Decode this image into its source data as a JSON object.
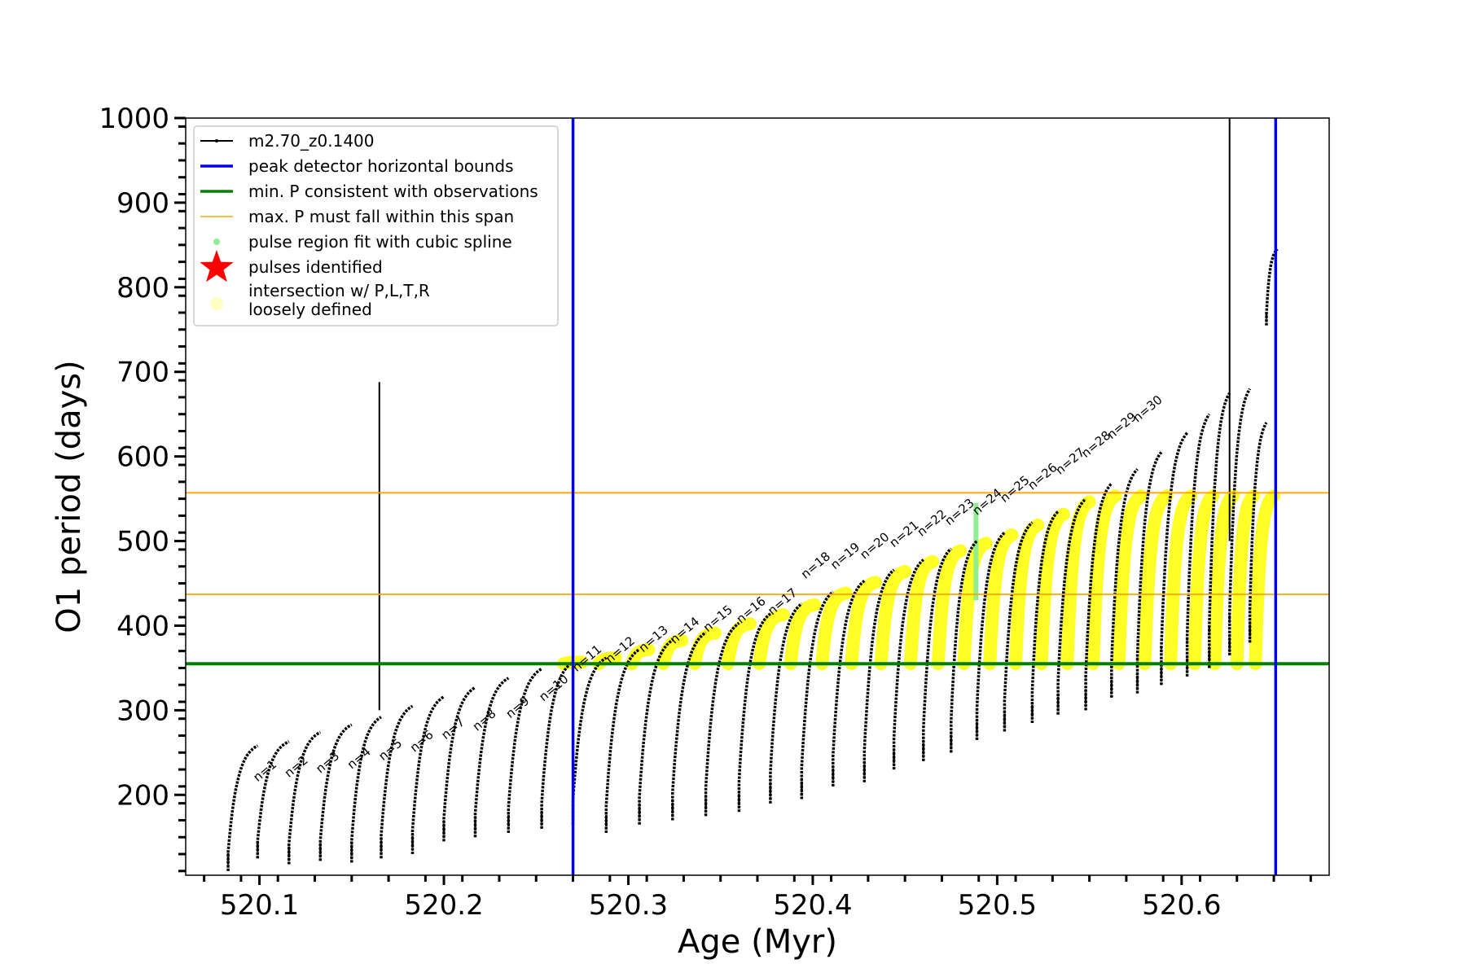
{
  "chart_data": {
    "type": "line",
    "xlabel": "Age (Myr)",
    "ylabel": "O1 period (days)",
    "xlim": [
      520.06,
      520.68
    ],
    "ylim": [
      105,
      1000
    ],
    "x_ticks": [
      "520.1",
      "520.2",
      "520.3",
      "520.4",
      "520.5",
      "520.6"
    ],
    "x_tick_values": [
      520.1,
      520.2,
      520.3,
      520.4,
      520.5,
      520.6
    ],
    "y_ticks": [
      "200",
      "300",
      "400",
      "500",
      "600",
      "700",
      "800",
      "900",
      "1000"
    ],
    "y_tick_values": [
      200,
      300,
      400,
      500,
      600,
      700,
      800,
      900,
      1000
    ],
    "legend": {
      "placement": "upper-left",
      "entries": [
        {
          "label": "m2.70_z0.1400",
          "style": "black-line-dots"
        },
        {
          "label": "peak detector horizontal bounds",
          "style": "blue-line"
        },
        {
          "label": "min. P consistent with observations",
          "style": "green-line"
        },
        {
          "label": "max. P must fall within this span",
          "style": "orange-line"
        },
        {
          "label": "pulse region fit with cubic spline",
          "style": "lightgreen-dot"
        },
        {
          "label": "pulses identified",
          "style": "red-star"
        },
        {
          "label": "intersection w/ P,L,T,R\nloosely defined",
          "style": "yellow-dot"
        }
      ]
    },
    "vertical_lines": [
      520.27,
      520.651
    ],
    "min_period_line": 355,
    "max_period_span": [
      437,
      557
    ],
    "series": [
      {
        "name": "m2.70_z0.1400",
        "color": "#000000",
        "pulses": [
          {
            "start": 520.083,
            "end": 520.099,
            "min": 110,
            "peak": 258
          },
          {
            "start": 520.099,
            "end": 520.116,
            "min": 125,
            "peak": 263
          },
          {
            "start": 520.116,
            "end": 520.133,
            "min": 118,
            "peak": 274
          },
          {
            "start": 520.133,
            "end": 520.15,
            "min": 122,
            "peak": 283
          },
          {
            "start": 520.15,
            "end": 520.166,
            "min": 120,
            "peak": 292
          },
          {
            "start": 520.166,
            "end": 520.183,
            "min": 125,
            "peak": 305
          },
          {
            "start": 520.183,
            "end": 520.2,
            "min": 130,
            "peak": 316
          },
          {
            "start": 520.2,
            "end": 520.217,
            "min": 145,
            "peak": 327
          },
          {
            "start": 520.217,
            "end": 520.235,
            "min": 150,
            "peak": 338
          },
          {
            "start": 520.235,
            "end": 520.253,
            "min": 155,
            "peak": 349
          },
          {
            "start": 520.253,
            "end": 520.27,
            "min": 160,
            "peak": 357
          },
          {
            "start": 520.27,
            "end": 520.288,
            "min": 165,
            "peak": 362
          },
          {
            "start": 520.288,
            "end": 520.306,
            "min": 155,
            "peak": 372
          },
          {
            "start": 520.306,
            "end": 520.324,
            "min": 165,
            "peak": 383
          },
          {
            "start": 520.324,
            "end": 520.342,
            "min": 170,
            "peak": 392
          },
          {
            "start": 520.342,
            "end": 520.36,
            "min": 175,
            "peak": 403
          },
          {
            "start": 520.36,
            "end": 520.377,
            "min": 180,
            "peak": 414
          },
          {
            "start": 520.377,
            "end": 520.394,
            "min": 190,
            "peak": 426
          },
          {
            "start": 520.394,
            "end": 520.411,
            "min": 195,
            "peak": 440
          },
          {
            "start": 520.411,
            "end": 520.428,
            "min": 210,
            "peak": 453
          },
          {
            "start": 520.428,
            "end": 520.444,
            "min": 215,
            "peak": 466
          },
          {
            "start": 520.444,
            "end": 520.46,
            "min": 230,
            "peak": 478
          },
          {
            "start": 520.46,
            "end": 520.475,
            "min": 240,
            "peak": 491
          },
          {
            "start": 520.475,
            "end": 520.489,
            "min": 250,
            "peak": 500
          },
          {
            "start": 520.489,
            "end": 520.504,
            "min": 265,
            "peak": 510
          },
          {
            "start": 520.504,
            "end": 520.519,
            "min": 275,
            "peak": 522
          },
          {
            "start": 520.519,
            "end": 520.533,
            "min": 285,
            "peak": 535
          },
          {
            "start": 520.533,
            "end": 520.548,
            "min": 295,
            "peak": 550
          },
          {
            "start": 520.548,
            "end": 520.562,
            "min": 300,
            "peak": 568
          },
          {
            "start": 520.562,
            "end": 520.576,
            "min": 315,
            "peak": 585
          },
          {
            "start": 520.576,
            "end": 520.589,
            "min": 320,
            "peak": 605
          },
          {
            "start": 520.589,
            "end": 520.603,
            "min": 330,
            "peak": 628
          },
          {
            "start": 520.603,
            "end": 520.615,
            "min": 340,
            "peak": 650
          },
          {
            "start": 520.615,
            "end": 520.626,
            "min": 350,
            "peak": 675
          },
          {
            "start": 520.626,
            "end": 520.637,
            "min": 365,
            "peak": 680
          },
          {
            "start": 520.637,
            "end": 520.646,
            "min": 380,
            "peak": 640
          },
          {
            "start": 520.646,
            "end": 520.652,
            "min": 755,
            "peak": 845
          }
        ],
        "spikes": [
          {
            "x": 520.165,
            "y_top": 688,
            "y_bottom": 300
          },
          {
            "x": 520.626,
            "y_top": 1000,
            "y_bottom": 500
          },
          {
            "x": 520.651,
            "y_top": 1000,
            "y_bottom": 620
          }
        ]
      }
    ],
    "pulse_labels": [
      "n=1",
      "n=2",
      "n=3",
      "n=4",
      "n=5",
      "n=6",
      "n=7",
      "n=8",
      "n=9",
      "n=10",
      "n=11",
      "n=12",
      "n=13",
      "n=14",
      "n=15",
      "n=16",
      "n=17",
      "n=18",
      "n=19",
      "n=20",
      "n=21",
      "n=22",
      "n=23",
      "n=24",
      "n=25",
      "n=26",
      "n=27",
      "n=28",
      "n=29",
      "n=30"
    ],
    "pulse_label_positions": [
      {
        "x": 520.099,
        "y": 215
      },
      {
        "x": 520.116,
        "y": 220
      },
      {
        "x": 520.133,
        "y": 225
      },
      {
        "x": 520.15,
        "y": 230
      },
      {
        "x": 520.167,
        "y": 240
      },
      {
        "x": 520.184,
        "y": 250
      },
      {
        "x": 520.201,
        "y": 265
      },
      {
        "x": 520.218,
        "y": 275
      },
      {
        "x": 520.236,
        "y": 290
      },
      {
        "x": 520.254,
        "y": 310
      },
      {
        "x": 520.272,
        "y": 345
      },
      {
        "x": 520.29,
        "y": 355
      },
      {
        "x": 520.308,
        "y": 368
      },
      {
        "x": 520.325,
        "y": 378
      },
      {
        "x": 520.343,
        "y": 392
      },
      {
        "x": 520.361,
        "y": 402
      },
      {
        "x": 520.378,
        "y": 412
      },
      {
        "x": 520.396,
        "y": 455
      },
      {
        "x": 520.412,
        "y": 466
      },
      {
        "x": 520.428,
        "y": 478
      },
      {
        "x": 520.444,
        "y": 492
      },
      {
        "x": 520.459,
        "y": 505
      },
      {
        "x": 520.474,
        "y": 518
      },
      {
        "x": 520.489,
        "y": 530
      },
      {
        "x": 520.504,
        "y": 545
      },
      {
        "x": 520.519,
        "y": 560
      },
      {
        "x": 520.534,
        "y": 578
      },
      {
        "x": 520.548,
        "y": 598
      },
      {
        "x": 520.562,
        "y": 620
      },
      {
        "x": 520.576,
        "y": 640
      }
    ],
    "yellow_regions": [
      [
        520.265,
        520.275
      ],
      [
        520.284,
        520.293
      ],
      [
        520.302,
        520.311
      ],
      [
        520.319,
        520.329
      ],
      [
        520.336,
        520.347
      ],
      [
        520.354,
        520.366
      ],
      [
        520.371,
        520.384
      ],
      [
        520.388,
        520.401
      ],
      [
        520.405,
        520.418
      ],
      [
        520.421,
        520.434
      ],
      [
        520.437,
        520.45
      ],
      [
        520.453,
        520.465
      ],
      [
        520.468,
        520.48
      ],
      [
        520.482,
        520.494
      ],
      [
        520.496,
        520.508
      ],
      [
        520.51,
        520.522
      ],
      [
        520.524,
        520.536
      ],
      [
        520.538,
        520.55
      ],
      [
        520.552,
        520.564
      ],
      [
        520.566,
        520.578
      ],
      [
        520.58,
        520.592
      ],
      [
        520.594,
        520.605
      ],
      [
        520.607,
        520.617
      ],
      [
        520.618,
        520.628
      ],
      [
        520.63,
        520.639
      ],
      [
        520.64,
        520.65
      ]
    ],
    "green_spline": {
      "x": 520.4885,
      "y_from": 430,
      "y_to": 545
    }
  }
}
